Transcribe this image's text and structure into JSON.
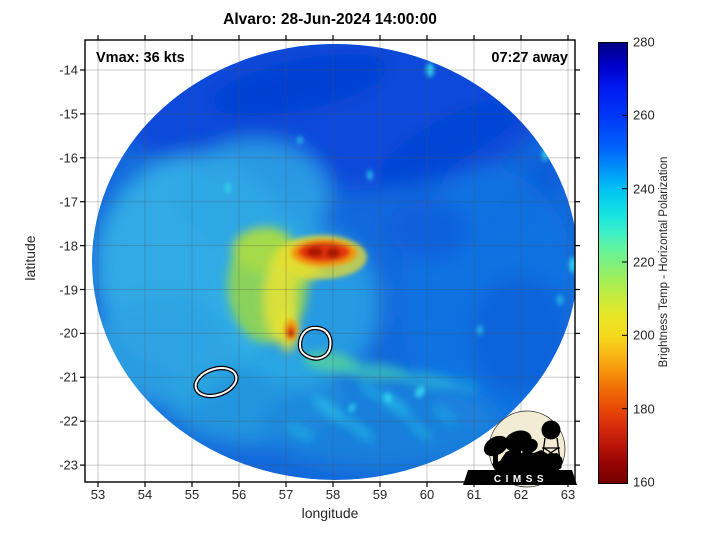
{
  "figure": {
    "title": "Alvaro: 28-Jun-2024 14:00:00",
    "vmax_label": "Vmax: 36 kts",
    "time_away_label": "07:27 away",
    "logo_text": "CIMSS"
  },
  "chart_data": {
    "type": "heatmap",
    "title": "Alvaro: 28-Jun-2024 14:00:00",
    "xlabel": "longitude",
    "ylabel": "latitude",
    "xlim": [
      52.7,
      63.2
    ],
    "ylim": [
      -23.4,
      -13.3
    ],
    "xticks": [
      53,
      54,
      55,
      56,
      57,
      58,
      59,
      60,
      61,
      62,
      63
    ],
    "yticks": [
      -14,
      -15,
      -16,
      -17,
      -18,
      -19,
      -20,
      -21,
      -22,
      -23
    ],
    "grid": true,
    "colorbar": {
      "label": "Brightness Temp - Horizontal Polarization",
      "ticks": [
        280,
        260,
        240,
        220,
        200,
        180,
        160
      ],
      "min": 160,
      "max": 280,
      "colormap": "reversed jet (dark red = 160 K at bottom, dark navy blue = 280 K at top)"
    },
    "annotations": [
      {
        "text": "Vmax: 36 kts",
        "position": "top-left",
        "bold": true
      },
      {
        "text": "07:27 away",
        "position": "top-right",
        "bold": true
      }
    ],
    "features": {
      "storm_name": "Alvaro",
      "datetime": "28-Jun-2024 14:00:00",
      "swath": "circular microwave brightness-temperature swath on white background",
      "swath_center": {
        "lon": 58.0,
        "lat": -18.4
      },
      "swath_radius_deg": 5.1,
      "background_field": "mostly 250-270 K blues; darker blue (~265-275 K) across the northern third; lighter cyan (~240-250 K) west and southwest of center",
      "warm_band": "yellow-green curved band (~200-220 K) near 57.0-57.8E, 18.0-20.0S",
      "coldest_cloud_tops": {
        "lon": 57.9,
        "lat": -18.2,
        "approx_temp_K": 165,
        "appearance": "dark red / red ellipse with orange-yellow halo"
      },
      "secondary_cold_spot": {
        "lon": 57.2,
        "lat": -20.0,
        "approx_temp_K": 190
      },
      "cyan_streaks": "radial cyan streaks (~235 K) in the south/southeast sector",
      "contours": [
        {
          "lon": 57.6,
          "lat": -20.3,
          "style": "white contour with black outline"
        },
        {
          "lon": 55.5,
          "lat": -21.1,
          "style": "white contour with black outline"
        }
      ]
    }
  }
}
